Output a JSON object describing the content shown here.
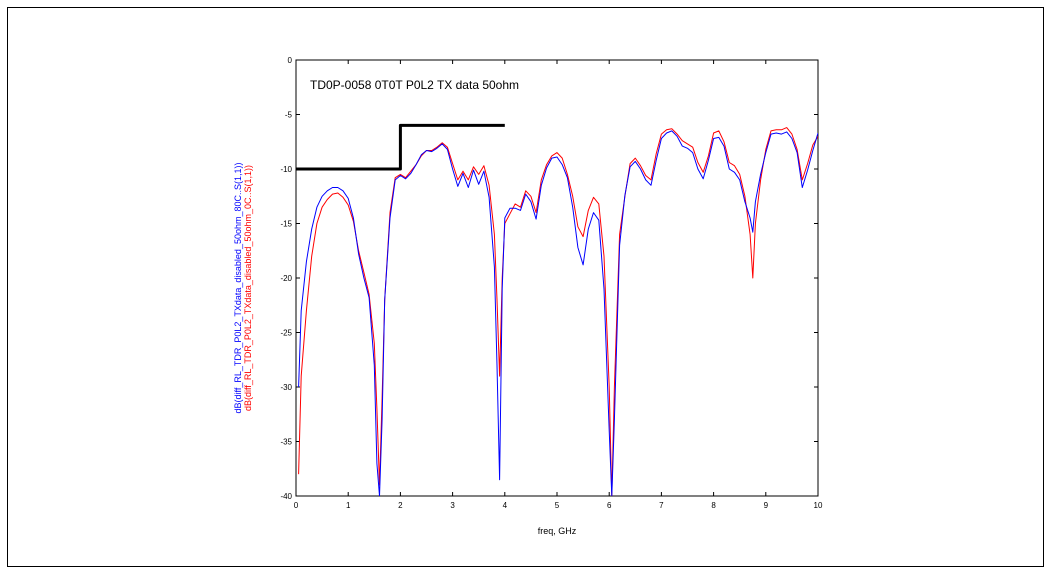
{
  "chart_data": {
    "type": "line",
    "title": "TD0P-0058 0T0T P0L2 TX data 50ohm",
    "xlabel": "freq, GHz",
    "ylabel_lines": [
      {
        "text": "dB(diff_RL_TDR_P0L2_TXdata_disabled_50ohm_80C..S(1,1))",
        "color": "#0000ff"
      },
      {
        "text": "dB(diff_RL_TDR_P0L2_TXdata_disabled_50ohm_0C..S(1,1))",
        "color": "#ff0000"
      }
    ],
    "xlim": [
      0,
      10
    ],
    "ylim": [
      -40,
      0
    ],
    "xticks": [
      "0",
      "1",
      "2",
      "3",
      "4",
      "5",
      "6",
      "7",
      "8",
      "9",
      "10"
    ],
    "yticks": [
      "0",
      "-5",
      "-10",
      "-15",
      "-20",
      "-25",
      "-30",
      "-35",
      "-40"
    ],
    "grid": false,
    "series": [
      {
        "color": "#000000",
        "width": 3,
        "x": [
          0,
          2,
          2,
          4
        ],
        "y": [
          -10,
          -10,
          -6,
          -6
        ]
      },
      {
        "color": "#ff0000",
        "width": 1,
        "x": [
          0.05,
          0.1,
          0.2,
          0.3,
          0.4,
          0.5,
          0.6,
          0.7,
          0.8,
          0.9,
          1.0,
          1.1,
          1.2,
          1.3,
          1.4,
          1.5,
          1.55,
          1.6,
          1.65,
          1.7,
          1.8,
          1.9,
          2.0,
          2.1,
          2.2,
          2.3,
          2.4,
          2.5,
          2.6,
          2.7,
          2.8,
          2.9,
          3.0,
          3.1,
          3.2,
          3.3,
          3.4,
          3.5,
          3.6,
          3.7,
          3.8,
          3.85,
          3.9,
          3.95,
          4.0,
          4.1,
          4.2,
          4.3,
          4.4,
          4.5,
          4.6,
          4.7,
          4.8,
          4.9,
          5.0,
          5.1,
          5.2,
          5.3,
          5.4,
          5.5,
          5.6,
          5.7,
          5.8,
          5.9,
          6.0,
          6.05,
          6.1,
          6.2,
          6.3,
          6.4,
          6.5,
          6.6,
          6.7,
          6.8,
          6.9,
          7.0,
          7.1,
          7.2,
          7.3,
          7.4,
          7.5,
          7.6,
          7.7,
          7.8,
          7.9,
          8.0,
          8.1,
          8.2,
          8.3,
          8.4,
          8.5,
          8.6,
          8.7,
          8.75,
          8.8,
          8.9,
          9.0,
          9.1,
          9.2,
          9.3,
          9.4,
          9.5,
          9.6,
          9.7,
          9.8,
          9.9,
          10.0
        ],
        "y": [
          -38,
          -29,
          -23,
          -18,
          -15,
          -13.5,
          -12.8,
          -12.3,
          -12.2,
          -12.6,
          -13.3,
          -14.8,
          -17.5,
          -19.5,
          -21.5,
          -26,
          -32,
          -39,
          -31,
          -22,
          -14,
          -10.8,
          -10.5,
          -10.8,
          -10.2,
          -9.6,
          -8.8,
          -8.3,
          -8.3,
          -8.0,
          -7.6,
          -8.0,
          -9.5,
          -11,
          -10.2,
          -11,
          -9.8,
          -10.5,
          -9.7,
          -11.5,
          -16,
          -22,
          -29,
          -20,
          -15,
          -14.1,
          -13.2,
          -13.5,
          -12,
          -12.5,
          -14,
          -11,
          -9.6,
          -8.8,
          -8.5,
          -9.0,
          -10.5,
          -12.5,
          -15.3,
          -16.2,
          -13.8,
          -12.6,
          -13.2,
          -18,
          -30,
          -40,
          -30,
          -16,
          -12.5,
          -9.5,
          -9.0,
          -9.7,
          -10.6,
          -11.0,
          -8.6,
          -6.8,
          -6.4,
          -6.3,
          -6.8,
          -7.4,
          -7.7,
          -8.0,
          -9.4,
          -10.3,
          -8.8,
          -6.7,
          -6.5,
          -7.5,
          -9.4,
          -9.7,
          -10.5,
          -12.5,
          -16,
          -20,
          -15,
          -11,
          -8.2,
          -6.5,
          -6.4,
          -6.4,
          -6.2,
          -6.8,
          -8.2,
          -11,
          -9.5,
          -7.8,
          -7.0
        ]
      },
      {
        "color": "#0000ff",
        "width": 1,
        "x": [
          0.05,
          0.1,
          0.2,
          0.3,
          0.4,
          0.5,
          0.6,
          0.7,
          0.8,
          0.9,
          1.0,
          1.1,
          1.2,
          1.3,
          1.4,
          1.5,
          1.55,
          1.6,
          1.65,
          1.7,
          1.8,
          1.9,
          2.0,
          2.1,
          2.2,
          2.3,
          2.4,
          2.5,
          2.6,
          2.7,
          2.8,
          2.9,
          3.0,
          3.1,
          3.2,
          3.3,
          3.4,
          3.5,
          3.6,
          3.7,
          3.8,
          3.85,
          3.9,
          3.95,
          4.0,
          4.1,
          4.2,
          4.3,
          4.4,
          4.5,
          4.6,
          4.7,
          4.8,
          4.9,
          5.0,
          5.1,
          5.2,
          5.3,
          5.4,
          5.5,
          5.6,
          5.7,
          5.8,
          5.9,
          6.0,
          6.05,
          6.1,
          6.2,
          6.3,
          6.4,
          6.5,
          6.6,
          6.7,
          6.8,
          6.9,
          7.0,
          7.1,
          7.2,
          7.3,
          7.4,
          7.5,
          7.6,
          7.7,
          7.8,
          7.9,
          8.0,
          8.1,
          8.2,
          8.3,
          8.4,
          8.5,
          8.6,
          8.7,
          8.75,
          8.8,
          8.9,
          9.0,
          9.1,
          9.2,
          9.3,
          9.4,
          9.5,
          9.6,
          9.7,
          9.8,
          9.9,
          10.0
        ],
        "y": [
          -30,
          -23,
          -18.5,
          -15.5,
          -13.5,
          -12.5,
          -12.0,
          -11.7,
          -11.7,
          -12.0,
          -12.7,
          -14.5,
          -17.8,
          -20,
          -21.8,
          -28,
          -37,
          -40,
          -33,
          -22,
          -14.5,
          -11,
          -10.6,
          -10.9,
          -10.4,
          -9.6,
          -8.7,
          -8.3,
          -8.4,
          -8.1,
          -7.7,
          -8.2,
          -10,
          -11.6,
          -10.4,
          -11.7,
          -10.1,
          -11.4,
          -10.2,
          -12.6,
          -19,
          -28,
          -38.5,
          -21,
          -14.5,
          -13.6,
          -13.6,
          -13.8,
          -12.3,
          -13,
          -14.6,
          -11.5,
          -9.9,
          -9.0,
          -8.9,
          -9.6,
          -10.8,
          -13.5,
          -17.2,
          -18.8,
          -15.5,
          -14.0,
          -14.7,
          -21,
          -34,
          -40,
          -33,
          -17,
          -12.4,
          -9.8,
          -9.3,
          -10,
          -11,
          -11.5,
          -9.2,
          -7.2,
          -6.7,
          -6.5,
          -7.0,
          -7.9,
          -8.1,
          -8.5,
          -10,
          -10.9,
          -9.2,
          -7.2,
          -7.1,
          -7.9,
          -10,
          -10.3,
          -11,
          -13,
          -14.5,
          -15.8,
          -13,
          -10.5,
          -8.5,
          -6.8,
          -6.7,
          -6.8,
          -6.6,
          -7.2,
          -8.5,
          -11.7,
          -10.1,
          -8.3,
          -6.7
        ]
      }
    ]
  }
}
